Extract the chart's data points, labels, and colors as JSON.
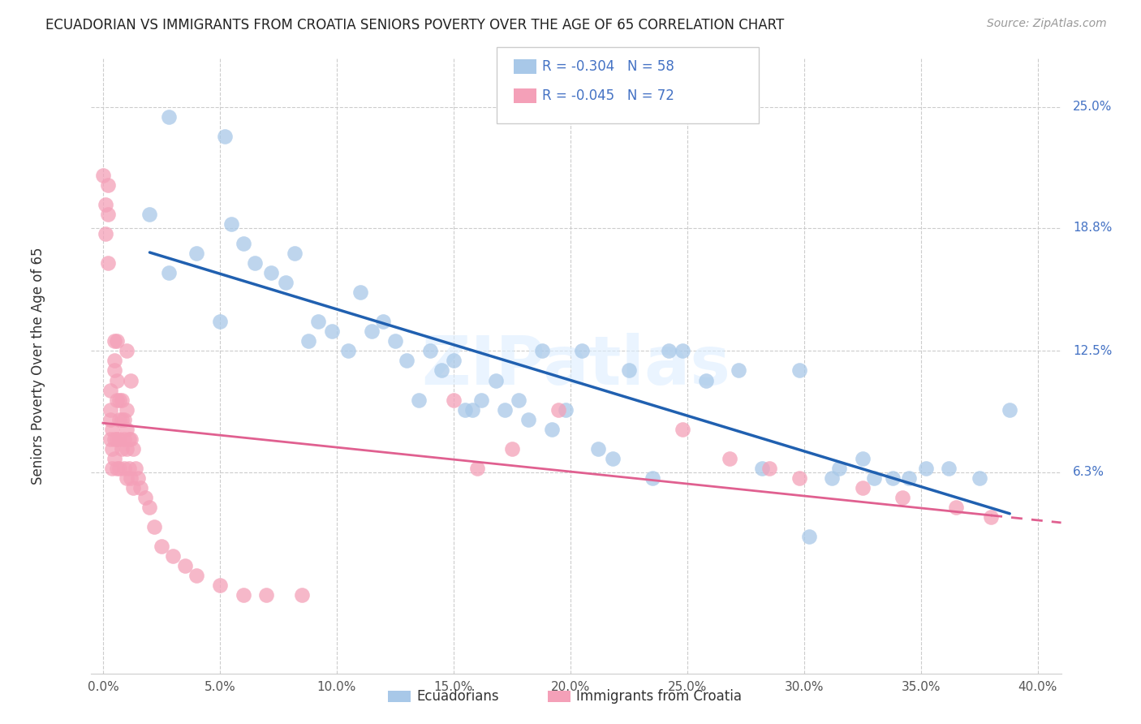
{
  "title": "ECUADORIAN VS IMMIGRANTS FROM CROATIA SENIORS POVERTY OVER THE AGE OF 65 CORRELATION CHART",
  "source": "Source: ZipAtlas.com",
  "ylabel": "Seniors Poverty Over the Age of 65",
  "xlabel_ticks": [
    "0.0%",
    "5.0%",
    "10.0%",
    "15.0%",
    "20.0%",
    "25.0%",
    "30.0%",
    "35.0%",
    "40.0%"
  ],
  "ytick_labels": [
    "6.3%",
    "12.5%",
    "18.8%",
    "25.0%"
  ],
  "ytick_values": [
    0.063,
    0.125,
    0.188,
    0.25
  ],
  "xtick_values": [
    0.0,
    0.05,
    0.1,
    0.15,
    0.2,
    0.25,
    0.3,
    0.35,
    0.4
  ],
  "xlim": [
    -0.005,
    0.41
  ],
  "ylim": [
    -0.04,
    0.275
  ],
  "blue_color": "#A8C8E8",
  "pink_color": "#F4A0B8",
  "blue_line_color": "#2060B0",
  "pink_line_color": "#E06090",
  "watermark": "ZIPatlas",
  "blue_scatter_x": [
    0.028,
    0.052,
    0.02,
    0.028,
    0.04,
    0.05,
    0.055,
    0.06,
    0.065,
    0.072,
    0.078,
    0.082,
    0.088,
    0.092,
    0.098,
    0.105,
    0.11,
    0.115,
    0.12,
    0.125,
    0.13,
    0.135,
    0.14,
    0.145,
    0.15,
    0.155,
    0.158,
    0.162,
    0.168,
    0.172,
    0.178,
    0.182,
    0.188,
    0.192,
    0.198,
    0.205,
    0.212,
    0.218,
    0.225,
    0.248,
    0.258,
    0.272,
    0.282,
    0.298,
    0.312,
    0.325,
    0.338,
    0.352,
    0.362,
    0.375,
    0.388,
    0.235,
    0.242,
    0.302,
    0.315,
    0.33,
    0.345
  ],
  "blue_scatter_y": [
    0.245,
    0.235,
    0.195,
    0.165,
    0.175,
    0.14,
    0.19,
    0.18,
    0.17,
    0.165,
    0.16,
    0.175,
    0.13,
    0.14,
    0.135,
    0.125,
    0.155,
    0.135,
    0.14,
    0.13,
    0.12,
    0.1,
    0.125,
    0.115,
    0.12,
    0.095,
    0.095,
    0.1,
    0.11,
    0.095,
    0.1,
    0.09,
    0.125,
    0.085,
    0.095,
    0.125,
    0.075,
    0.07,
    0.115,
    0.125,
    0.11,
    0.115,
    0.065,
    0.115,
    0.06,
    0.07,
    0.06,
    0.065,
    0.065,
    0.06,
    0.095,
    0.06,
    0.125,
    0.03,
    0.065,
    0.06,
    0.06
  ],
  "pink_scatter_x": [
    0.0,
    0.001,
    0.001,
    0.002,
    0.002,
    0.002,
    0.003,
    0.003,
    0.003,
    0.003,
    0.004,
    0.004,
    0.004,
    0.005,
    0.005,
    0.005,
    0.005,
    0.005,
    0.006,
    0.006,
    0.006,
    0.006,
    0.006,
    0.007,
    0.007,
    0.007,
    0.007,
    0.008,
    0.008,
    0.008,
    0.009,
    0.009,
    0.009,
    0.01,
    0.01,
    0.01,
    0.01,
    0.011,
    0.011,
    0.012,
    0.012,
    0.013,
    0.013,
    0.014,
    0.015,
    0.016,
    0.018,
    0.02,
    0.022,
    0.025,
    0.03,
    0.035,
    0.04,
    0.05,
    0.06,
    0.07,
    0.085,
    0.15,
    0.16,
    0.175,
    0.195,
    0.248,
    0.268,
    0.285,
    0.298,
    0.325,
    0.342,
    0.365,
    0.38,
    0.01,
    0.012
  ],
  "pink_scatter_y": [
    0.215,
    0.2,
    0.185,
    0.21,
    0.195,
    0.17,
    0.105,
    0.095,
    0.09,
    0.08,
    0.085,
    0.075,
    0.065,
    0.13,
    0.12,
    0.115,
    0.08,
    0.07,
    0.13,
    0.11,
    0.1,
    0.08,
    0.065,
    0.1,
    0.09,
    0.08,
    0.065,
    0.1,
    0.09,
    0.075,
    0.09,
    0.08,
    0.065,
    0.095,
    0.085,
    0.075,
    0.06,
    0.08,
    0.065,
    0.08,
    0.06,
    0.075,
    0.055,
    0.065,
    0.06,
    0.055,
    0.05,
    0.045,
    0.035,
    0.025,
    0.02,
    0.015,
    0.01,
    0.005,
    0.0,
    0.0,
    0.0,
    0.1,
    0.065,
    0.075,
    0.095,
    0.085,
    0.07,
    0.065,
    0.06,
    0.055,
    0.05,
    0.045,
    0.04,
    0.125,
    0.11
  ]
}
